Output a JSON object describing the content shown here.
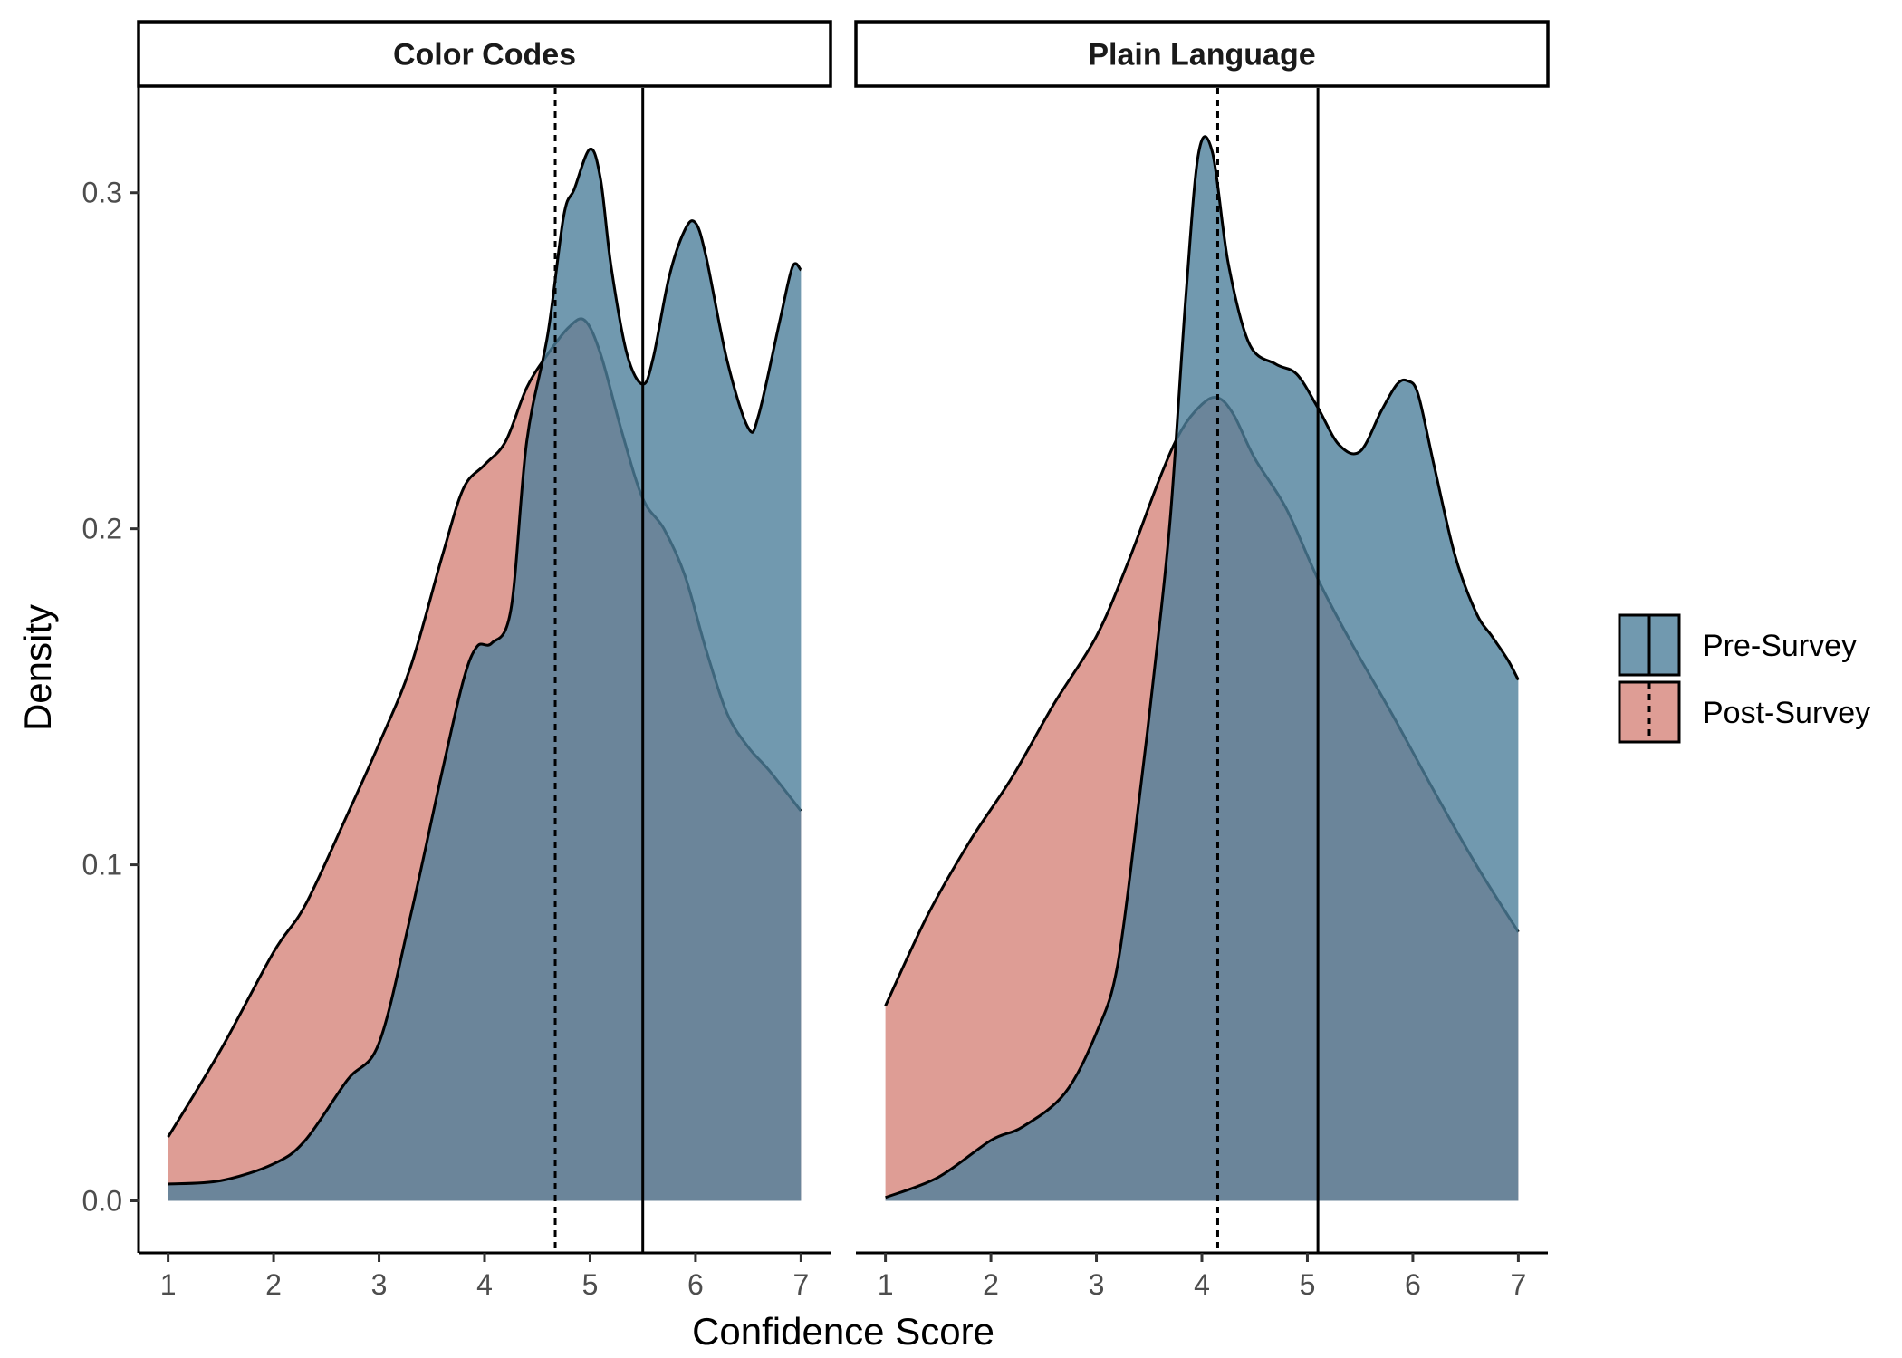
{
  "chart_data": {
    "type": "area",
    "subtype": "density",
    "xlabel": "Confidence Score",
    "ylabel": "Density",
    "xlim": [
      0.72,
      7.28
    ],
    "ylim": [
      -0.0155,
      0.3312
    ],
    "x_ticks": [
      1,
      2,
      3,
      4,
      5,
      6,
      7
    ],
    "y_ticks": [
      0.0,
      0.1,
      0.2,
      0.3
    ],
    "y_tick_labels": [
      "0.0",
      "0.1",
      "0.2",
      "0.3"
    ],
    "grid": false,
    "legend_position": "right",
    "legend": [
      {
        "name": "Pre-Survey",
        "color": "#4e7f9b",
        "line_style": "solid"
      },
      {
        "name": "Post-Survey",
        "color": "#d6847a",
        "line_style": "dotted"
      }
    ],
    "colors": {
      "pre": "#4e7f9b",
      "post": "#d6847a",
      "overlap": "#976a6a",
      "outline": "#000000"
    },
    "panels": [
      {
        "title": "Color Codes",
        "series": [
          {
            "name": "Pre-Survey",
            "x": [
              1,
              1.5,
              2,
              2.3,
              2.7,
              3,
              3.3,
              3.6,
              3.8,
              3.93,
              4.07,
              4.25,
              4.4,
              4.6,
              4.75,
              4.85,
              5.0,
              5.1,
              5.2,
              5.35,
              5.5,
              5.6,
              5.75,
              5.9,
              6.0,
              6.1,
              6.3,
              6.5,
              6.6,
              6.8,
              6.92,
              7.0
            ],
            "y": [
              0.005,
              0.006,
              0.011,
              0.018,
              0.036,
              0.047,
              0.085,
              0.128,
              0.155,
              0.165,
              0.166,
              0.176,
              0.226,
              0.258,
              0.293,
              0.301,
              0.313,
              0.304,
              0.278,
              0.252,
              0.243,
              0.251,
              0.275,
              0.289,
              0.291,
              0.281,
              0.25,
              0.23,
              0.234,
              0.262,
              0.278,
              0.277
            ],
            "mean": 5.5,
            "mean_line": "solid"
          },
          {
            "name": "Post-Survey",
            "x": [
              1,
              1.5,
              2,
              2.3,
              2.7,
              3,
              3.3,
              3.6,
              3.8,
              4.0,
              4.2,
              4.4,
              4.6,
              4.8,
              4.95,
              5.1,
              5.3,
              5.5,
              5.7,
              5.9,
              6.1,
              6.3,
              6.5,
              6.7,
              7.0
            ],
            "y": [
              0.019,
              0.045,
              0.074,
              0.088,
              0.115,
              0.136,
              0.159,
              0.192,
              0.212,
              0.219,
              0.226,
              0.242,
              0.252,
              0.26,
              0.262,
              0.252,
              0.229,
              0.209,
              0.2,
              0.186,
              0.164,
              0.145,
              0.135,
              0.128,
              0.116
            ],
            "mean": 4.67,
            "mean_line": "dotted"
          }
        ]
      },
      {
        "title": "Plain Language",
        "series": [
          {
            "name": "Pre-Survey",
            "x": [
              1,
              1.5,
              2,
              2.3,
              2.7,
              3.0,
              3.2,
              3.4,
              3.55,
              3.7,
              3.85,
              3.97,
              4.1,
              4.25,
              4.45,
              4.7,
              4.9,
              5.1,
              5.3,
              5.5,
              5.7,
              5.85,
              5.95,
              6.05,
              6.2,
              6.4,
              6.6,
              6.75,
              6.9,
              7.0
            ],
            "y": [
              0.001,
              0.007,
              0.018,
              0.022,
              0.032,
              0.05,
              0.07,
              0.118,
              0.158,
              0.203,
              0.27,
              0.312,
              0.312,
              0.279,
              0.255,
              0.249,
              0.246,
              0.236,
              0.225,
              0.223,
              0.235,
              0.243,
              0.244,
              0.24,
              0.219,
              0.192,
              0.175,
              0.168,
              0.161,
              0.155
            ],
            "mean": 5.1,
            "mean_line": "solid"
          },
          {
            "name": "Post-Survey",
            "x": [
              1,
              1.4,
              1.8,
              2.2,
              2.6,
              3.0,
              3.3,
              3.6,
              3.8,
              4.0,
              4.15,
              4.3,
              4.5,
              4.8,
              5.1,
              5.4,
              5.8,
              6.2,
              6.6,
              7.0
            ],
            "y": [
              0.058,
              0.085,
              0.107,
              0.126,
              0.148,
              0.168,
              0.19,
              0.215,
              0.229,
              0.237,
              0.239,
              0.234,
              0.221,
              0.206,
              0.185,
              0.167,
              0.145,
              0.122,
              0.1,
              0.08
            ],
            "mean": 4.15,
            "mean_line": "dotted"
          }
        ]
      }
    ]
  }
}
